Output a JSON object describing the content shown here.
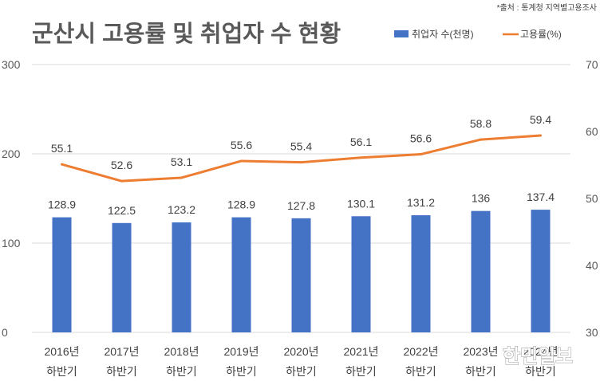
{
  "title": "군산시 고용률 및 취업자 수 현황",
  "source": "*출처 : 통계청 지역별고용조사",
  "watermark": "한민일보",
  "colors": {
    "bar": "#4472c4",
    "line": "#ed7d31"
  },
  "chart_data": {
    "type": "bar",
    "categories": [
      [
        "2016년",
        "하반기"
      ],
      [
        "2017년",
        "하반기"
      ],
      [
        "2018년",
        "하반기"
      ],
      [
        "2019년",
        "하반기"
      ],
      [
        "2020년",
        "하반기"
      ],
      [
        "2021년",
        "하반기"
      ],
      [
        "2022년",
        "하반기"
      ],
      [
        "2023년",
        "하반기"
      ],
      [
        "2024년",
        "하반기"
      ]
    ],
    "series": [
      {
        "name": "취업자 수(천명)",
        "type": "bar",
        "axis": "left",
        "values": [
          128.9,
          122.5,
          123.2,
          128.9,
          127.8,
          130.1,
          131.2,
          136,
          137.4
        ]
      },
      {
        "name": "고용률(%)",
        "type": "line",
        "axis": "right",
        "values": [
          55.1,
          52.6,
          53.1,
          55.6,
          55.4,
          56.1,
          56.6,
          58.8,
          59.4
        ]
      }
    ],
    "y_left": {
      "min": 0,
      "max": 300,
      "ticks": [
        0,
        100,
        200,
        300
      ]
    },
    "y_right": {
      "min": 30,
      "max": 70,
      "ticks": [
        30,
        40,
        50,
        60,
        70
      ]
    },
    "grid": true,
    "legend": "top-right"
  }
}
